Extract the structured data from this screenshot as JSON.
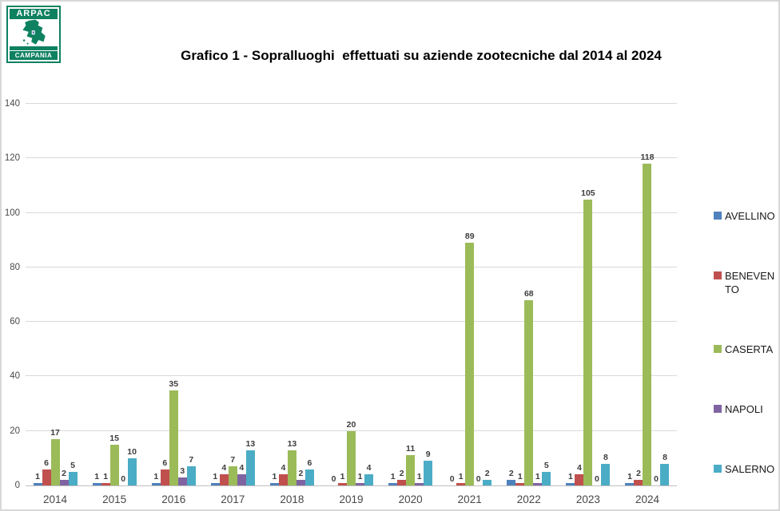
{
  "title": "Grafico 1 - Sopralluoghi  effettuati su aziende zootecniche dal 2014 al 2024",
  "logo": {
    "top_text": "ARPAC",
    "bottom_text": "CAMPANIA"
  },
  "chart_data": {
    "type": "bar",
    "title": "Grafico 1 - Sopralluoghi  effettuati su aziende zootecniche dal 2014 al 2024",
    "categories": [
      "2014",
      "2015",
      "2016",
      "2017",
      "2018",
      "2019",
      "2020",
      "2021",
      "2022",
      "2023",
      "2024"
    ],
    "series": [
      {
        "name": "AVELLINO",
        "color": "#4F81BD",
        "values": [
          1,
          1,
          1,
          1,
          1,
          0,
          1,
          0,
          2,
          1,
          1
        ]
      },
      {
        "name": "BENEVENTO",
        "color": "#C0504D",
        "values": [
          6,
          1,
          6,
          4,
          4,
          1,
          2,
          1,
          1,
          4,
          2
        ]
      },
      {
        "name": "CASERTA",
        "color": "#9BBB59",
        "values": [
          17,
          15,
          35,
          7,
          13,
          20,
          11,
          89,
          68,
          105,
          118
        ]
      },
      {
        "name": "NAPOLI",
        "color": "#8064A2",
        "values": [
          2,
          0,
          3,
          4,
          2,
          1,
          1,
          0,
          1,
          0,
          0
        ]
      },
      {
        "name": "SALERNO",
        "color": "#4BACC6",
        "values": [
          5,
          10,
          7,
          13,
          6,
          4,
          9,
          2,
          5,
          8,
          8
        ]
      }
    ],
    "ylim": [
      0,
      140
    ],
    "y_ticks": [
      0,
      20,
      40,
      60,
      80,
      100,
      120,
      140
    ],
    "grid": true,
    "data_labels": true,
    "legend_position": "right",
    "xlabel": "",
    "ylabel": ""
  }
}
